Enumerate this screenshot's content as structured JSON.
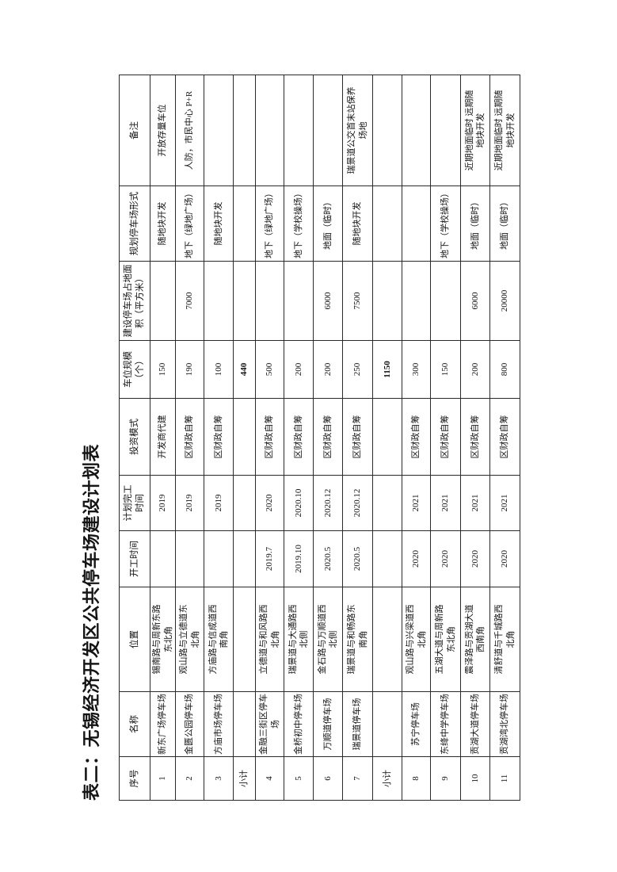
{
  "page": {
    "title": "表二：无锡经济开发区公共停车场建设计划表"
  },
  "table": {
    "columns": [
      {
        "key": "seq",
        "label": "序号"
      },
      {
        "key": "name",
        "label": "名称"
      },
      {
        "key": "location",
        "label": "位置"
      },
      {
        "key": "start",
        "label": "开工时间"
      },
      {
        "key": "finish",
        "label": "计划完工\n时间"
      },
      {
        "key": "invest",
        "label": "投资模式"
      },
      {
        "key": "spaces",
        "label": "车位规模\n（个）"
      },
      {
        "key": "area",
        "label": "建设停车场占地面\n积（平方米）"
      },
      {
        "key": "form",
        "label": "规划停车场形式"
      },
      {
        "key": "remark",
        "label": "备注"
      }
    ],
    "rows": [
      {
        "seq": "1",
        "name": "新东广场停车场",
        "location": "锡南路与周新东路\n东北角",
        "start": "",
        "finish": "2019",
        "invest": "开发商代建",
        "spaces": "150",
        "area": "",
        "form": "随地块开发",
        "remark": "开放存量车位",
        "subtotal": false
      },
      {
        "seq": "2",
        "name": "金匮公园停车场",
        "location": "观山路与立德道东\n北角",
        "start": "",
        "finish": "2019",
        "invest": "区财政自筹",
        "spaces": "190",
        "area": "7000",
        "form": "地下（绿地广场）",
        "remark": "人防，市民中心 P+R",
        "subtotal": false
      },
      {
        "seq": "3",
        "name": "方庙市场停车场",
        "location": "方庙路与信成道西\n南角",
        "start": "",
        "finish": "2019",
        "invest": "区财政自筹",
        "spaces": "100",
        "area": "",
        "form": "随地块开发",
        "remark": "",
        "subtotal": false
      },
      {
        "seq": "小计",
        "name": "",
        "location": "",
        "start": "",
        "finish": "",
        "invest": "",
        "spaces": "440",
        "area": "",
        "form": "",
        "remark": "",
        "subtotal": true
      },
      {
        "seq": "4",
        "name": "金融三街区停车\n场",
        "location": "立德道与和风路西\n北角",
        "start": "2019.7",
        "finish": "2020",
        "invest": "区财政自筹",
        "spaces": "500",
        "area": "",
        "form": "地下（绿地广场）",
        "remark": "",
        "subtotal": false
      },
      {
        "seq": "5",
        "name": "金桥初中停车场",
        "location": "瑞景道与大通路西\n北侧",
        "start": "2019.10",
        "finish": "2020.10",
        "invest": "区财政自筹",
        "spaces": "200",
        "area": "",
        "form": "地下（学校操场）",
        "remark": "",
        "subtotal": false
      },
      {
        "seq": "6",
        "name": "万顺道停车场",
        "location": "金石路与万顺道西\n北侧",
        "start": "2020.5",
        "finish": "2020.12",
        "invest": "区财政自筹",
        "spaces": "200",
        "area": "6000",
        "form": "地面（临时）",
        "remark": "",
        "subtotal": false
      },
      {
        "seq": "7",
        "name": "瑞景道停车场",
        "location": "瑞景道与和畅路东\n南角",
        "start": "2020.5",
        "finish": "2020.12",
        "invest": "区财政自筹",
        "spaces": "250",
        "area": "7500",
        "form": "随地块开发",
        "remark": "瑞景道公交首末站保养\n场地",
        "subtotal": false
      },
      {
        "seq": "小计",
        "name": "",
        "location": "",
        "start": "",
        "finish": "",
        "invest": "",
        "spaces": "1150",
        "area": "",
        "form": "",
        "remark": "",
        "subtotal": true
      },
      {
        "seq": "8",
        "name": "苏宁停车场",
        "location": "观山路与兴梁道西\n北角",
        "start": "2020",
        "finish": "2021",
        "invest": "区财政自筹",
        "spaces": "300",
        "area": "",
        "form": "",
        "remark": "",
        "subtotal": false
      },
      {
        "seq": "9",
        "name": "东绛中学停车场",
        "location": "五湖大道与周新路\n东北角",
        "start": "2020",
        "finish": "2021",
        "invest": "区财政自筹",
        "spaces": "150",
        "area": "",
        "form": "地下（学校操场）",
        "remark": "",
        "subtotal": false
      },
      {
        "seq": "10",
        "name": "贡湖大道停车场",
        "location": "震泽路与贡湖大道\n西南角",
        "start": "2020",
        "finish": "2021",
        "invest": "区财政自筹",
        "spaces": "200",
        "area": "6000",
        "form": "地面（临时）",
        "remark": "近期地面临时 远期随\n地块开发",
        "subtotal": false
      },
      {
        "seq": "11",
        "name": "贡湖湾北停车场",
        "location": "清舒道与千城路西\n北角",
        "start": "2020",
        "finish": "2021",
        "invest": "区财政自筹",
        "spaces": "800",
        "area": "20000",
        "form": "地面（临时）",
        "remark": "近期地面临时 远期随\n地块开发",
        "subtotal": false
      }
    ]
  }
}
